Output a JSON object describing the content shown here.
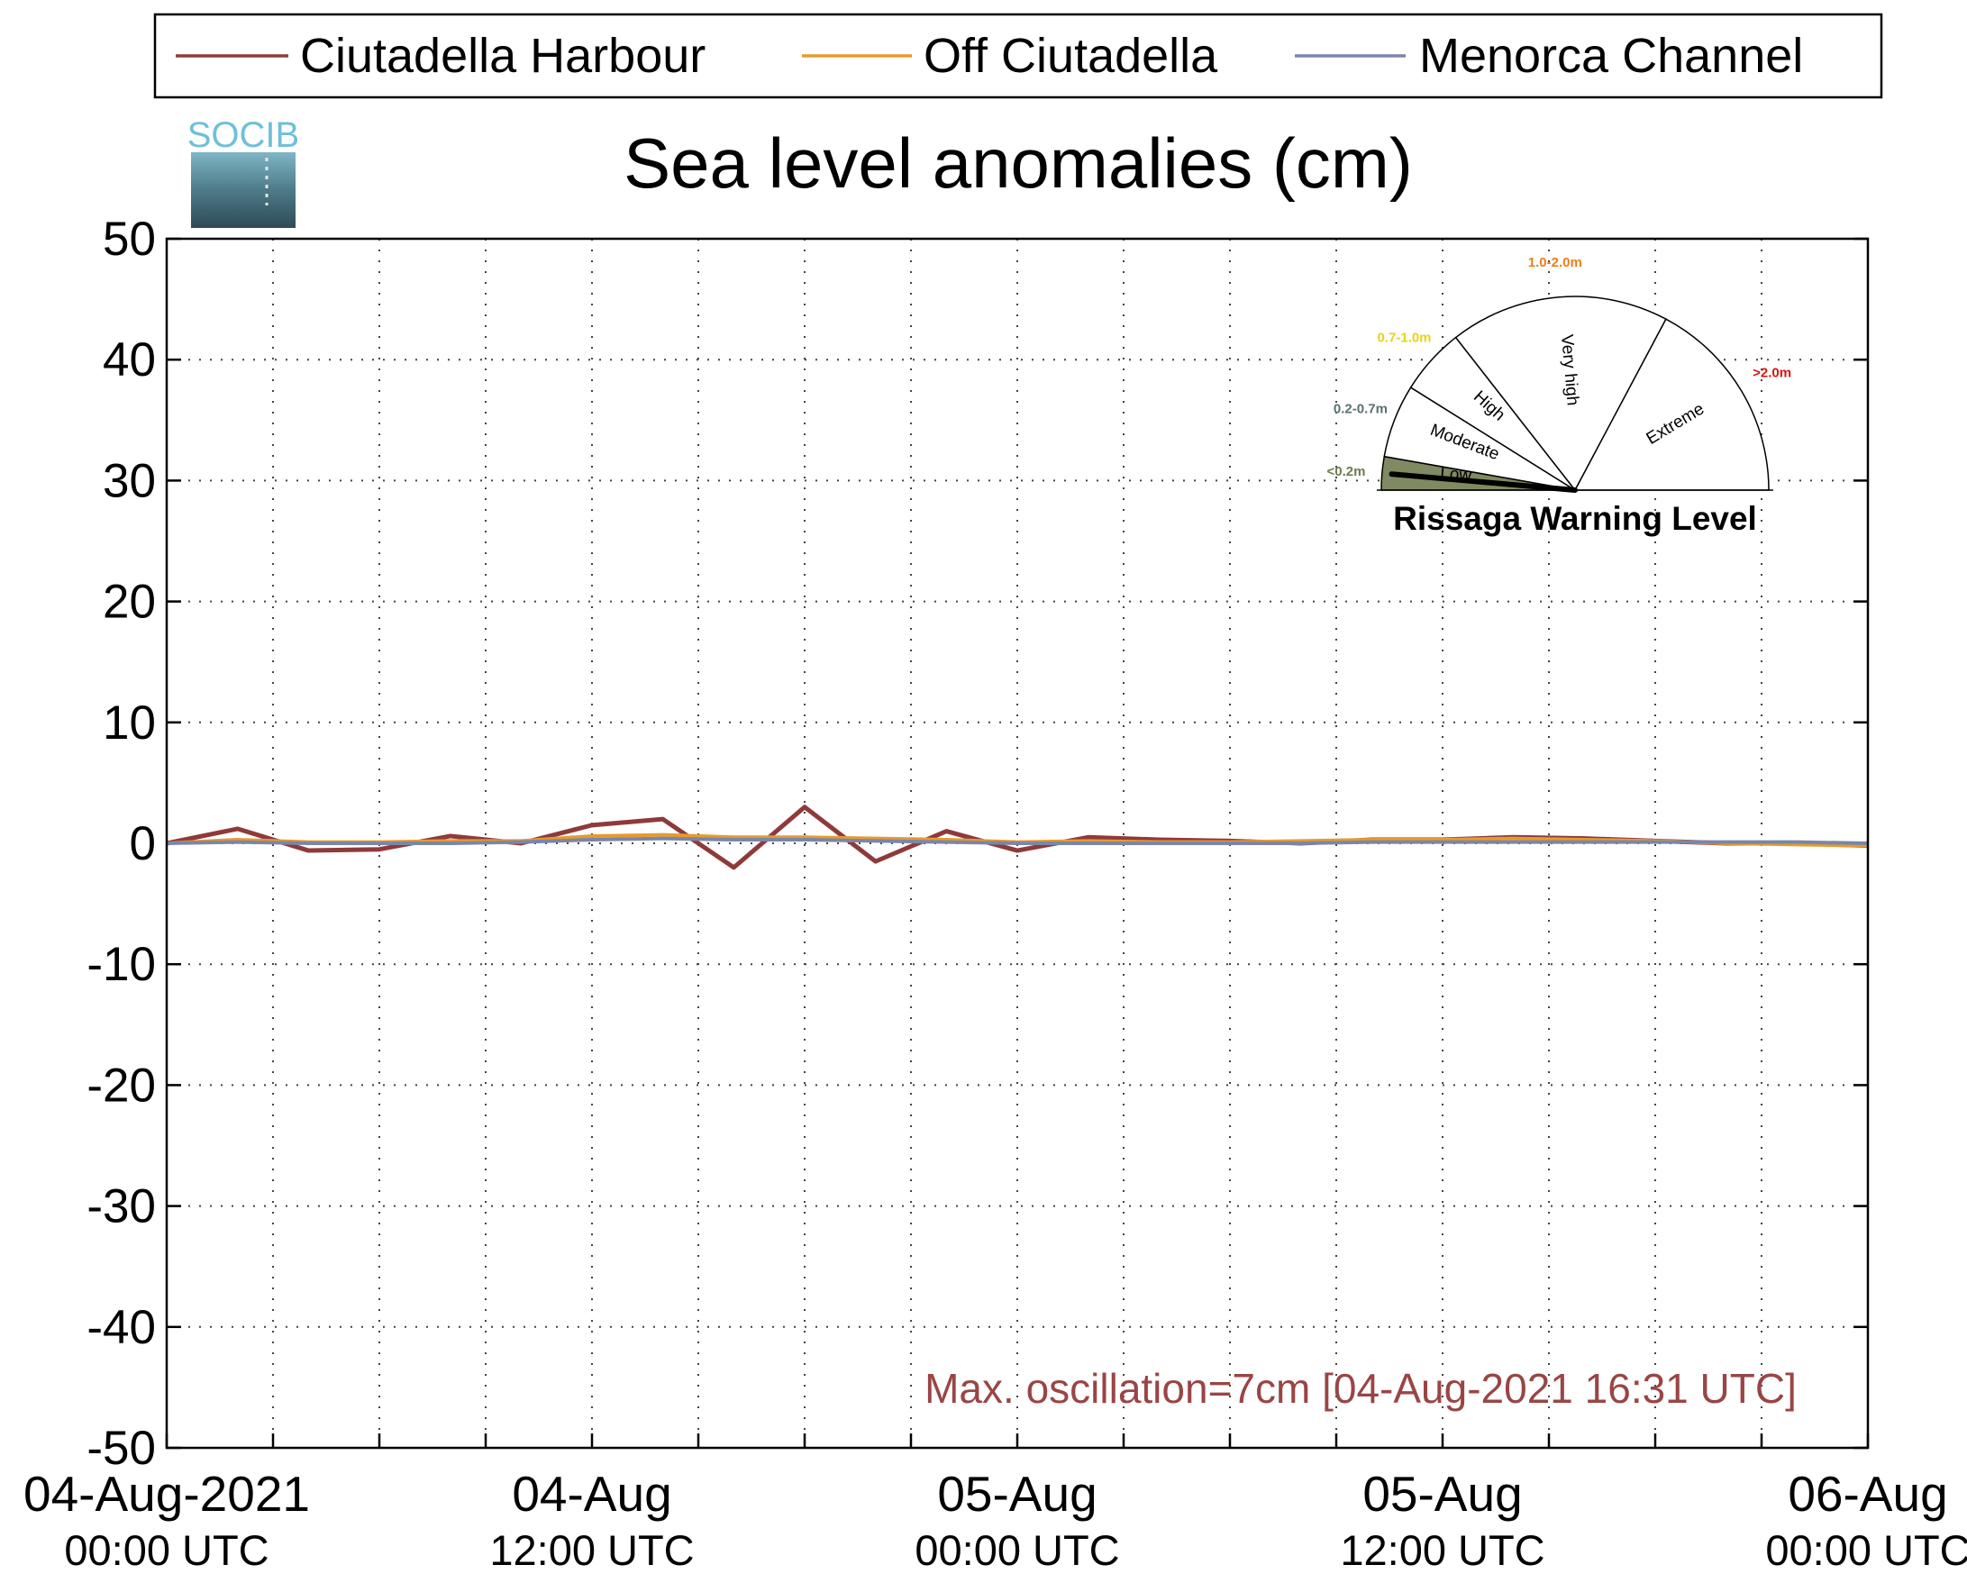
{
  "legend": {
    "entries": [
      {
        "label": "Ciutadella Harbour",
        "color": "#8f3a3a"
      },
      {
        "label": "Off Ciutadella",
        "color": "#e69b2e"
      },
      {
        "label": "Menorca Channel",
        "color": "#7b86a8"
      }
    ]
  },
  "logo": {
    "text": "SOCIB"
  },
  "title": "Sea level anomalies (cm)",
  "annotation": {
    "text": "Max. oscillation=7cm [04-Aug-2021 16:31 UTC]",
    "color": "#9a4545"
  },
  "gauge": {
    "title": "Rissaga Warning Level",
    "sectors": [
      {
        "label": "Low",
        "range": "<0.2m",
        "color": "#7f8a63",
        "range_color": "#6d7a4e"
      },
      {
        "label": "Moderate",
        "range": "0.2-0.7m",
        "color": "#ffffff",
        "range_color": "#5a7070"
      },
      {
        "label": "High",
        "range": "0.7-1.0m",
        "color": "#ffffff",
        "range_color": "#e8d21a"
      },
      {
        "label": "Very high",
        "range": "1.0-2.0m",
        "color": "#ffffff",
        "range_color": "#f07c1a"
      },
      {
        "label": "Extreme",
        "range": ">2.0m",
        "color": "#ffffff",
        "range_color": "#e01010"
      }
    ],
    "needle_level": "Low"
  },
  "chart_data": {
    "type": "line",
    "title": "Sea level anomalies (cm)",
    "ylim": [
      -50,
      50
    ],
    "yticks": [
      "50",
      "40",
      "30",
      "20",
      "10",
      "0",
      "-10",
      "-20",
      "-30",
      "-40",
      "-50"
    ],
    "x_range": [
      "04-Aug-2021 00:00 UTC",
      "06-Aug-2021 00:00 UTC"
    ],
    "xtick_labels": [
      {
        "date": "04-Aug-2021",
        "time": "00:00 UTC"
      },
      {
        "date": "04-Aug",
        "time": "12:00 UTC"
      },
      {
        "date": "05-Aug",
        "time": "00:00 UTC"
      },
      {
        "date": "05-Aug",
        "time": "12:00 UTC"
      },
      {
        "date": "06-Aug",
        "time": "00:00 UTC"
      }
    ],
    "grid": true,
    "legend_position": "top",
    "series": [
      {
        "name": "Ciutadella Harbour",
        "x": [
          "04-Aug 00:00",
          "04-Aug 02:00",
          "04-Aug 04:00",
          "04-Aug 06:00",
          "04-Aug 08:00",
          "04-Aug 10:00",
          "04-Aug 12:00",
          "04-Aug 14:00",
          "04-Aug 16:00",
          "04-Aug 18:00",
          "04-Aug 20:00",
          "04-Aug 22:00",
          "05-Aug 00:00",
          "05-Aug 02:00",
          "05-Aug 04:00",
          "05-Aug 06:00",
          "05-Aug 08:00",
          "05-Aug 10:00",
          "05-Aug 12:00",
          "05-Aug 14:00",
          "05-Aug 16:00",
          "05-Aug 18:00",
          "05-Aug 20:00",
          "05-Aug 22:00",
          "06-Aug 00:00"
        ],
        "y": [
          0.0,
          1.2,
          -0.6,
          -0.5,
          0.6,
          0.0,
          1.5,
          2.0,
          -2.0,
          3.0,
          -1.5,
          1.0,
          -0.6,
          0.5,
          0.3,
          0.2,
          0.0,
          0.3,
          0.3,
          0.5,
          0.4,
          0.2,
          0.0,
          0.0,
          -0.2
        ]
      },
      {
        "name": "Off Ciutadella",
        "x": [
          "04-Aug 00:00",
          "04-Aug 02:00",
          "04-Aug 04:00",
          "04-Aug 06:00",
          "04-Aug 08:00",
          "04-Aug 10:00",
          "04-Aug 12:00",
          "04-Aug 14:00",
          "04-Aug 16:00",
          "04-Aug 18:00",
          "04-Aug 20:00",
          "04-Aug 22:00",
          "05-Aug 00:00",
          "05-Aug 02:00",
          "05-Aug 04:00",
          "05-Aug 06:00",
          "05-Aug 08:00",
          "05-Aug 10:00",
          "05-Aug 12:00",
          "05-Aug 14:00",
          "05-Aug 16:00",
          "05-Aug 18:00",
          "05-Aug 20:00",
          "05-Aug 22:00",
          "06-Aug 00:00"
        ],
        "y": [
          0.0,
          0.3,
          0.1,
          0.1,
          0.2,
          0.2,
          0.6,
          0.7,
          0.5,
          0.5,
          0.4,
          0.3,
          0.1,
          0.2,
          0.1,
          0.1,
          0.2,
          0.3,
          0.3,
          0.4,
          0.3,
          0.2,
          0.0,
          -0.1,
          -0.2
        ]
      },
      {
        "name": "Menorca Channel",
        "x": [
          "04-Aug 00:00",
          "04-Aug 02:00",
          "04-Aug 04:00",
          "04-Aug 06:00",
          "04-Aug 08:00",
          "04-Aug 10:00",
          "04-Aug 12:00",
          "04-Aug 14:00",
          "04-Aug 16:00",
          "04-Aug 18:00",
          "04-Aug 20:00",
          "04-Aug 22:00",
          "05-Aug 00:00",
          "05-Aug 02:00",
          "05-Aug 04:00",
          "05-Aug 06:00",
          "05-Aug 08:00",
          "05-Aug 10:00",
          "05-Aug 12:00",
          "05-Aug 14:00",
          "05-Aug 16:00",
          "05-Aug 18:00",
          "05-Aug 20:00",
          "05-Aug 22:00",
          "06-Aug 00:00"
        ],
        "y": [
          0.0,
          0.1,
          0.0,
          0.0,
          0.0,
          0.1,
          0.3,
          0.4,
          0.3,
          0.3,
          0.2,
          0.1,
          0.0,
          0.0,
          0.0,
          0.0,
          0.0,
          0.1,
          0.1,
          0.1,
          0.1,
          0.1,
          0.1,
          0.1,
          0.0
        ]
      }
    ]
  }
}
